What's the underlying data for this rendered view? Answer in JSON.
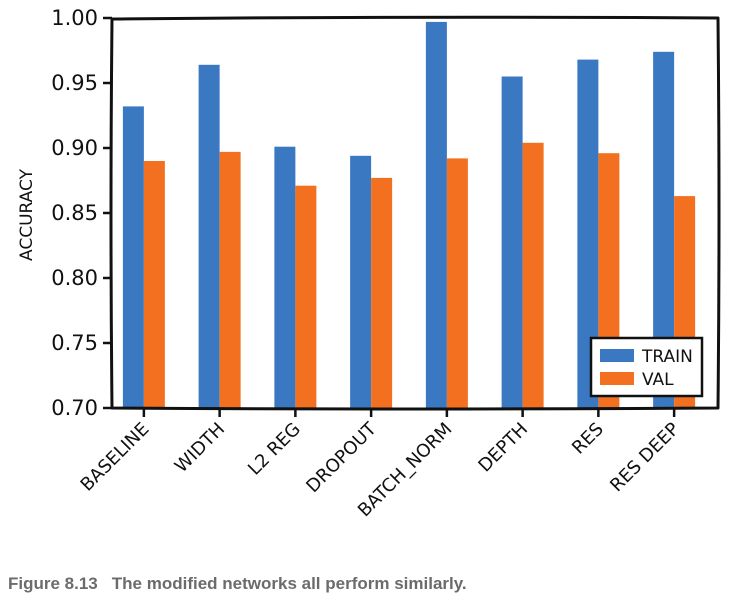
{
  "chart_data": {
    "type": "bar",
    "categories": [
      "BASELINE",
      "WIDTH",
      "L2 REG",
      "DROPOUT",
      "BATCH_NORM",
      "DEPTH",
      "RES",
      "RES DEEP"
    ],
    "series": [
      {
        "name": "TRAIN",
        "color": "#3a78c2",
        "values": [
          0.932,
          0.964,
          0.901,
          0.894,
          0.997,
          0.955,
          0.968,
          0.974
        ]
      },
      {
        "name": "VAL",
        "color": "#f2701f",
        "values": [
          0.89,
          0.897,
          0.871,
          0.877,
          0.892,
          0.904,
          0.896,
          0.863
        ]
      }
    ],
    "title": "",
    "xlabel": "",
    "ylabel": "ACCURACY",
    "ylim": [
      0.7,
      1.0
    ],
    "yticks": [
      "0.70",
      "0.75",
      "0.80",
      "0.85",
      "0.90",
      "0.95",
      "1.00"
    ],
    "grid": false,
    "legend": "bottom-right"
  },
  "caption": {
    "number": "Figure 8.13",
    "text": "The modified networks all perform similarly."
  }
}
